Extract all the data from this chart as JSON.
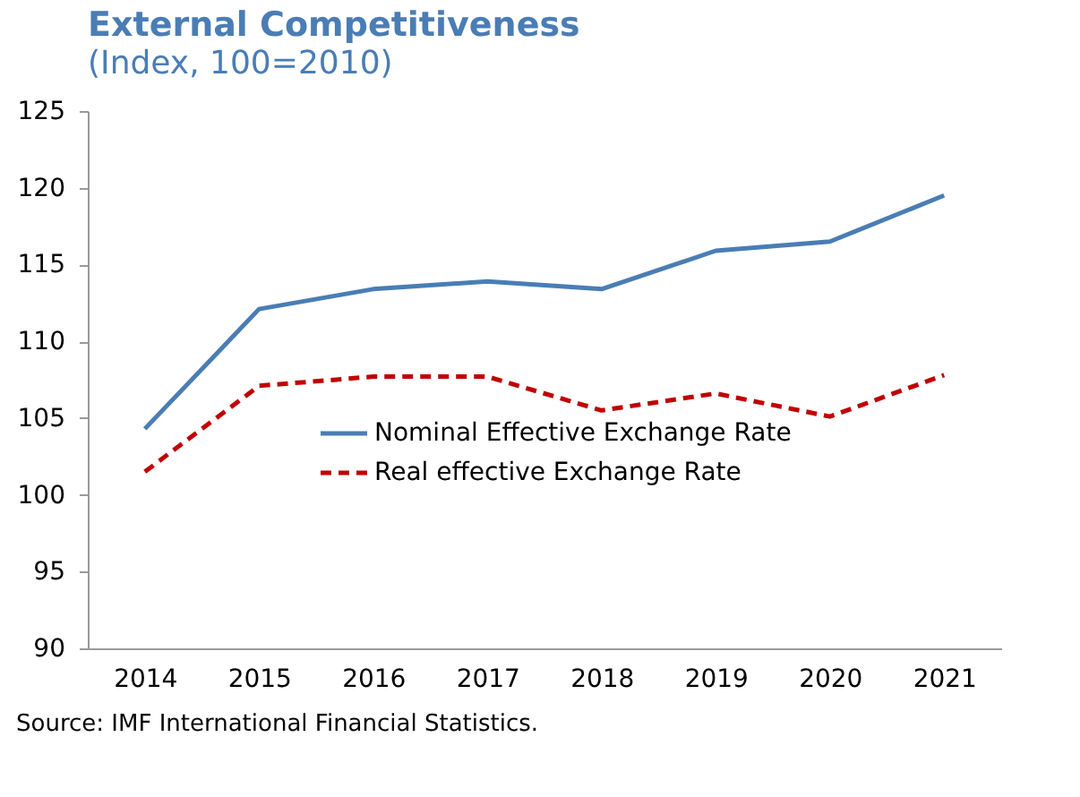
{
  "chart_data": {
    "type": "line",
    "title": "External Competitiveness",
    "subtitle": "(Index, 100=2010)",
    "categories": [
      "2014",
      "2015",
      "2016",
      "2017",
      "2018",
      "2019",
      "2020",
      "2021"
    ],
    "series": [
      {
        "name": "Nominal Effective Exchange Rate",
        "color": "#4a7db5",
        "line_style": "solid",
        "values": [
          104.3,
          112.1,
          113.4,
          113.9,
          113.4,
          115.9,
          116.5,
          119.5
        ]
      },
      {
        "name": "Real effective Exchange Rate",
        "color": "#c00000",
        "line_style": "dashed",
        "values": [
          101.5,
          107.1,
          107.7,
          107.7,
          105.5,
          106.6,
          105.1,
          107.8
        ]
      }
    ],
    "ylim": [
      90,
      125
    ],
    "yticks": [
      90,
      95,
      100,
      105,
      110,
      115,
      120,
      125
    ],
    "grid": false,
    "legend": "center",
    "annotations": [
      "Source: IMF International Financial Statistics."
    ]
  }
}
